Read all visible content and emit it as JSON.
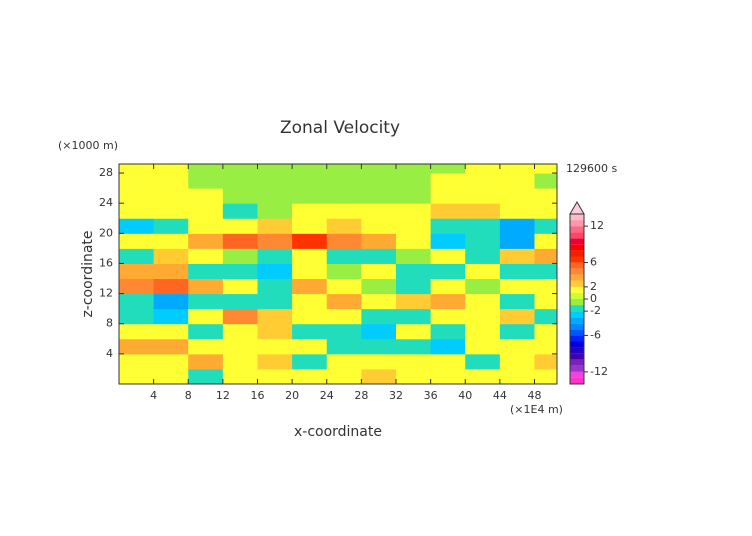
{
  "chart_data": {
    "type": "contour",
    "title": "Zonal Velocity",
    "ylabel_unit": "(×1000 m)",
    "time_label": "129600 s",
    "xlabel": "x-coordinate",
    "ylabel": "z-coordinate",
    "xlabel_unit": "(×1E4 m)",
    "xlim": [
      0,
      50.6
    ],
    "ylim": [
      0,
      29.2
    ],
    "xticks": [
      4,
      8,
      12,
      16,
      20,
      24,
      28,
      32,
      36,
      40,
      44,
      48
    ],
    "yticks": [
      4,
      8,
      12,
      16,
      20,
      24,
      28
    ],
    "field": {
      "x": [
        2,
        6,
        10,
        14,
        18,
        22,
        26,
        30,
        34,
        38,
        42,
        46,
        50
      ],
      "z": [
        1,
        3,
        5,
        7,
        9,
        11,
        13,
        15,
        17,
        19,
        21,
        23,
        25,
        27,
        29
      ],
      "values": [
        [
          1.5,
          1.5,
          -1.5,
          1.5,
          1.5,
          1.5,
          1.5,
          2.5,
          1.5,
          1.5,
          1,
          1.5,
          1.5
        ],
        [
          1.5,
          1.5,
          3,
          1.5,
          2.5,
          -1.5,
          1.5,
          1.5,
          1.5,
          1.5,
          -1.5,
          1.5,
          2.5
        ],
        [
          3,
          3,
          1.5,
          1.5,
          1.5,
          1.5,
          -1.5,
          -2,
          -1.5,
          -3,
          1.5,
          1.5,
          1.5
        ],
        [
          1.5,
          1.5,
          -1.5,
          1.5,
          2.5,
          -1.5,
          -1.5,
          -2.5,
          1.5,
          -1.5,
          1.5,
          -2,
          1.5
        ],
        [
          -2,
          -3,
          1.5,
          4,
          2.5,
          1.5,
          1.5,
          -1.5,
          -2,
          1.5,
          1.5,
          2,
          -1.5
        ],
        [
          -1.5,
          -4,
          -1.5,
          -2,
          -1.5,
          1.5,
          3,
          1.5,
          2.5,
          3.5,
          1.5,
          -1.5,
          1.5
        ],
        [
          4.5,
          5,
          3,
          1.5,
          -2,
          3,
          1.5,
          -0.5,
          -1.5,
          1.5,
          -1,
          1.5,
          1
        ],
        [
          3,
          3.5,
          -1.5,
          -1.5,
          -3,
          1.5,
          -1,
          1.5,
          -1.5,
          -1.5,
          1.5,
          -1.5,
          -1.5
        ],
        [
          -1.5,
          2,
          1.5,
          -0.5,
          -1.5,
          1,
          -2,
          -1.5,
          -1,
          1.5,
          -1.5,
          2.5,
          3
        ],
        [
          1.5,
          1.5,
          3,
          5,
          4.5,
          6,
          4,
          3,
          1.5,
          -2.5,
          -1.5,
          -4,
          1
        ],
        [
          -3,
          -1.5,
          1.5,
          1.5,
          2.5,
          1.5,
          2.5,
          1.5,
          1,
          -1.5,
          -1.5,
          -4,
          -1.5
        ],
        [
          1.5,
          1.5,
          1,
          -1.5,
          -0.5,
          1,
          1,
          1.5,
          1.5,
          2.5,
          2.5,
          1.5,
          1.5
        ],
        [
          1.5,
          1.5,
          1,
          -0.5,
          -0.5,
          -0.5,
          -0.5,
          -0.5,
          -0.5,
          1.5,
          1.5,
          1.5,
          1
        ],
        [
          1.5,
          1,
          -0.5,
          -0.5,
          -0.5,
          -0.5,
          -0.5,
          -0.5,
          -0.5,
          1,
          1.5,
          1.5,
          -0.5
        ],
        [
          1.5,
          1,
          -0.5,
          -0.5,
          -0.5,
          -0.5,
          -0.5,
          -0.5,
          -0.5,
          -0.5,
          1,
          1.5,
          1
        ]
      ]
    },
    "colorbar": {
      "lim": [
        -14,
        14
      ],
      "ticks": [
        12,
        6,
        2,
        0,
        -2,
        -6,
        -12
      ],
      "levels": [
        -14,
        -13,
        -12,
        -11,
        -10,
        -9,
        -8,
        -7,
        -6,
        -5,
        -4,
        -3,
        -2,
        -1,
        0,
        1,
        2,
        3,
        4,
        5,
        6,
        7,
        8,
        9,
        10,
        11,
        12,
        13,
        14
      ],
      "colors": [
        "#ff33cc",
        "#ee44dd",
        "#9933cc",
        "#7722bb",
        "#4400aa",
        "#2200cc",
        "#0000dd",
        "#0022ff",
        "#0055ff",
        "#0088ff",
        "#00aaff",
        "#00ccff",
        "#22ddbb",
        "#99ee44",
        "#ccff33",
        "#ffff33",
        "#ffcc33",
        "#ffaa33",
        "#ff8833",
        "#ff6622",
        "#ff3300",
        "#ee2200",
        "#ff0000",
        "#ee0033",
        "#ff4466",
        "#ff6688",
        "#ff99aa",
        "#ffbbcc"
      ],
      "over_color": "#ffccdd"
    }
  }
}
